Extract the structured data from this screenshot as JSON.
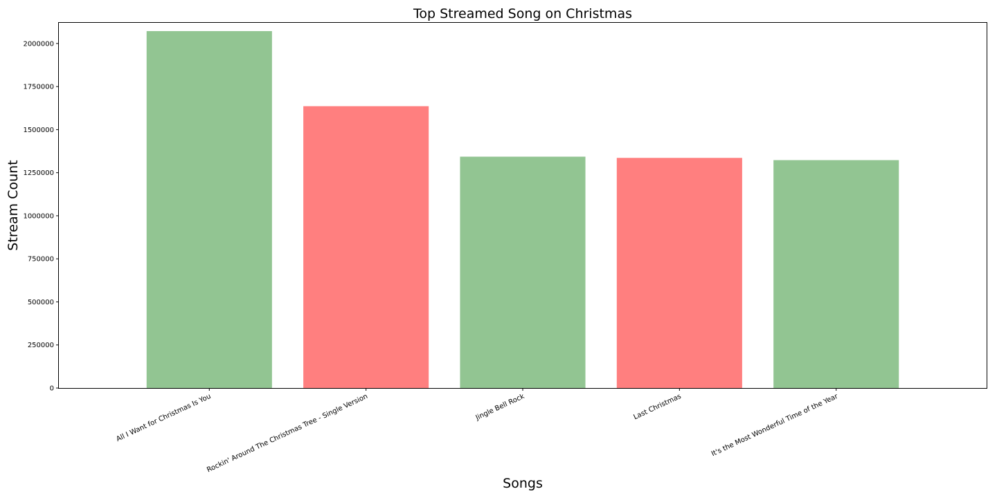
{
  "chart_data": {
    "type": "bar",
    "title": "Top Streamed Song on Christmas",
    "xlabel": "Songs",
    "ylabel": "Stream Count",
    "categories": [
      "All I Want for Christmas Is You",
      "Rockin' Around The Christmas Tree - Single Version",
      "Jingle Bell Rock",
      "Last Christmas",
      "It's the Most Wonderful Time of the Year"
    ],
    "values": [
      2072000,
      1636000,
      1343000,
      1336000,
      1323000
    ],
    "bar_colors": [
      "#92c592",
      "#ff7f7f",
      "#92c592",
      "#ff7f7f",
      "#92c592"
    ],
    "yticks": [
      0,
      250000,
      500000,
      750000,
      1000000,
      1250000,
      1500000,
      1750000,
      2000000
    ],
    "ylim": [
      0,
      2120000
    ],
    "grid": false,
    "legend": "none"
  }
}
